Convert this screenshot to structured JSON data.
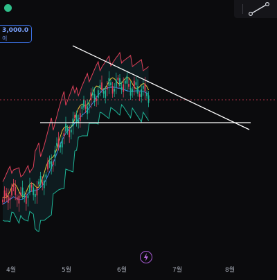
{
  "header": {
    "price_value": "3,000.0",
    "price_sub": "이"
  },
  "chart_data": {
    "type": "candlestick",
    "x_tick_labels": [
      "4월",
      "5월",
      "6월",
      "7월",
      "8월"
    ],
    "y_tick_labels": [],
    "indicators": [
      "bollinger-bands",
      "moving-average-yellow",
      "moving-average-blue"
    ],
    "grid": false,
    "colors": {
      "up": "#1fb89a",
      "down": "#e2405a",
      "ma_fast": "#e8c53a",
      "ma_slow": "#3f7fe8",
      "bb_upper": "#e2405a",
      "bb_lower": "#1fb89a",
      "drawn_lines": "#ffffff",
      "dotted_price": "#e2405a"
    }
  }
}
